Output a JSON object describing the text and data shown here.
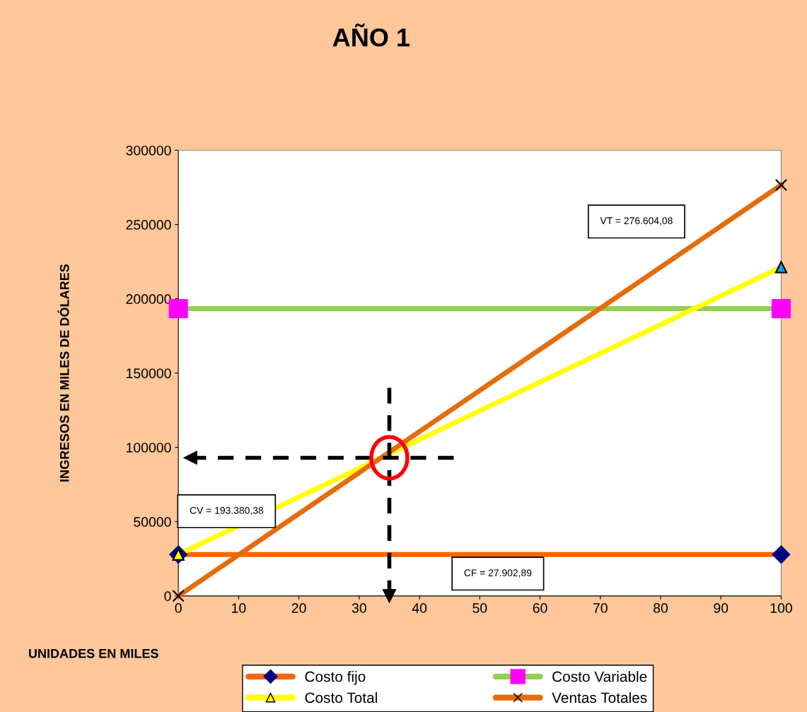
{
  "chart_data": {
    "type": "line",
    "title": "AÑO 1",
    "xlabel": "UNIDADES EN MILES",
    "ylabel": "INGRESOS EN MILES DE DÓLARES",
    "x": [
      0,
      100
    ],
    "series": [
      {
        "name": "Costo fijo",
        "color": "#ff6600",
        "values": [
          27902.89,
          27902.89
        ],
        "marker": "diamond",
        "colors": [
          "#000080",
          "#000080"
        ]
      },
      {
        "name": "Costo Variable",
        "color": "#92d050",
        "values": [
          193380.38,
          193380.38
        ],
        "marker": "square",
        "colors": [
          "#ff00ff",
          "#ff00ff"
        ]
      },
      {
        "name": "Costo Total",
        "color": "#ffff00",
        "values": [
          27902.89,
          221283.27
        ],
        "marker": "triangle",
        "colors": [
          "#ffff00",
          "#1fa0e0"
        ]
      },
      {
        "name": "Ventas Totales",
        "color": "#e46c0a",
        "values": [
          0,
          276604.08
        ],
        "marker": "cross",
        "colors": [
          "#000000",
          "#000000"
        ]
      }
    ],
    "annotations": [
      "VT = 276.604,08",
      "CV = 193.380,38",
      "CF = 27.902,89"
    ],
    "ref_lines": [
      {
        "axis": "x",
        "value": 35,
        "color": "#000000",
        "line_style": "dashed"
      },
      {
        "axis": "y",
        "value": 93000,
        "color": "#000000",
        "line_style": "dashed"
      }
    ],
    "xlim": [
      0,
      100
    ],
    "xticks": [
      0,
      10,
      20,
      30,
      40,
      50,
      60,
      70,
      80,
      90,
      100
    ],
    "ylim": [
      0,
      300000
    ],
    "yticks": [
      0,
      50000,
      100000,
      150000,
      200000,
      250000,
      300000
    ],
    "grid": false,
    "legend": "bottom",
    "line_style": "solid"
  }
}
